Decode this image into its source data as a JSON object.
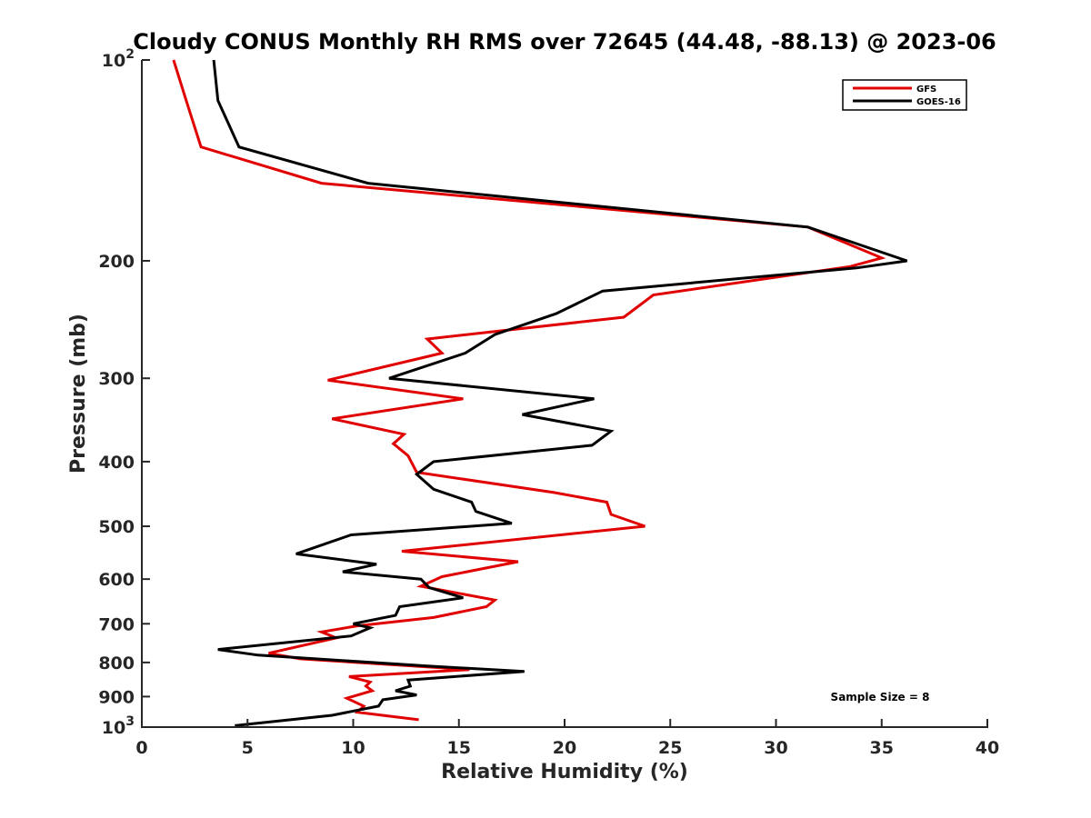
{
  "chart_data": {
    "type": "line",
    "title": "Cloudy CONUS Monthly RH RMS over 72645 (44.48, -88.13) @ 2023-06",
    "xlabel": "Relative Humidity (%)",
    "ylabel": "Pressure (mb)",
    "xlim": [
      0,
      40
    ],
    "ylim": [
      100,
      1000
    ],
    "y_scale": "log",
    "y_reversed": true,
    "x_ticks": [
      "0",
      "5",
      "10",
      "15",
      "20",
      "25",
      "30",
      "35",
      "40"
    ],
    "y_ticks": [
      {
        "value": 100,
        "base": "10",
        "exp": "2"
      },
      {
        "value": 200,
        "label": "200"
      },
      {
        "value": 300,
        "label": "300"
      },
      {
        "value": 400,
        "label": "400"
      },
      {
        "value": 500,
        "label": "500"
      },
      {
        "value": 600,
        "label": "600"
      },
      {
        "value": 700,
        "label": "700"
      },
      {
        "value": 800,
        "label": "800"
      },
      {
        "value": 900,
        "label": "900"
      },
      {
        "value": 1000,
        "base": "10",
        "exp": "3"
      }
    ],
    "grid": false,
    "legend_position": "top-right",
    "annotation": "Sample Size = 8",
    "series": [
      {
        "name": "GFS",
        "color": "#e00000",
        "points": [
          [
            1.5,
            100
          ],
          [
            2.1,
            115
          ],
          [
            2.8,
            135
          ],
          [
            8.5,
            153
          ],
          [
            31.5,
            178
          ],
          [
            35.0,
            198
          ],
          [
            33.5,
            204
          ],
          [
            24.2,
            225
          ],
          [
            22.8,
            243
          ],
          [
            13.5,
            262
          ],
          [
            14.2,
            275
          ],
          [
            8.8,
            302
          ],
          [
            15.2,
            322
          ],
          [
            9.0,
            345
          ],
          [
            12.4,
            364
          ],
          [
            11.9,
            376
          ],
          [
            12.6,
            392
          ],
          [
            13.0,
            415
          ],
          [
            19.5,
            445
          ],
          [
            22.0,
            460
          ],
          [
            22.2,
            480
          ],
          [
            23.8,
            500
          ],
          [
            12.3,
            545
          ],
          [
            17.8,
            565
          ],
          [
            14.2,
            595
          ],
          [
            13.2,
            615
          ],
          [
            16.7,
            645
          ],
          [
            16.3,
            660
          ],
          [
            13.8,
            685
          ],
          [
            10.2,
            705
          ],
          [
            8.5,
            720
          ],
          [
            9.2,
            735
          ],
          [
            6.0,
            775
          ],
          [
            7.5,
            790
          ],
          [
            15.5,
            820
          ],
          [
            9.8,
            840
          ],
          [
            10.8,
            856
          ],
          [
            10.6,
            868
          ],
          [
            10.9,
            882
          ],
          [
            9.7,
            905
          ],
          [
            10.5,
            930
          ],
          [
            10.2,
            950
          ],
          [
            13.1,
            975
          ]
        ]
      },
      {
        "name": "GOES-16",
        "color": "#000000",
        "points": [
          [
            3.4,
            100
          ],
          [
            3.6,
            115
          ],
          [
            4.6,
            135
          ],
          [
            10.7,
            153
          ],
          [
            31.5,
            178
          ],
          [
            36.2,
            200
          ],
          [
            33.8,
            205
          ],
          [
            21.8,
            222
          ],
          [
            19.6,
            240
          ],
          [
            16.7,
            258
          ],
          [
            15.3,
            275
          ],
          [
            11.7,
            300
          ],
          [
            21.4,
            322
          ],
          [
            18.0,
            340
          ],
          [
            22.2,
            360
          ],
          [
            21.3,
            378
          ],
          [
            13.8,
            400
          ],
          [
            13.0,
            418
          ],
          [
            13.8,
            440
          ],
          [
            15.6,
            460
          ],
          [
            15.8,
            475
          ],
          [
            17.5,
            495
          ],
          [
            9.9,
            515
          ],
          [
            7.3,
            550
          ],
          [
            11.1,
            570
          ],
          [
            9.5,
            585
          ],
          [
            13.2,
            600
          ],
          [
            13.6,
            618
          ],
          [
            15.2,
            640
          ],
          [
            12.2,
            660
          ],
          [
            12.0,
            680
          ],
          [
            10.0,
            700
          ],
          [
            10.8,
            710
          ],
          [
            9.9,
            730
          ],
          [
            3.6,
            765
          ],
          [
            5.5,
            780
          ],
          [
            13.5,
            810
          ],
          [
            18.1,
            825
          ],
          [
            12.6,
            850
          ],
          [
            12.7,
            868
          ],
          [
            12.0,
            882
          ],
          [
            13.0,
            895
          ],
          [
            11.4,
            910
          ],
          [
            11.2,
            930
          ],
          [
            9.0,
            960
          ],
          [
            4.4,
            995
          ]
        ]
      }
    ]
  }
}
